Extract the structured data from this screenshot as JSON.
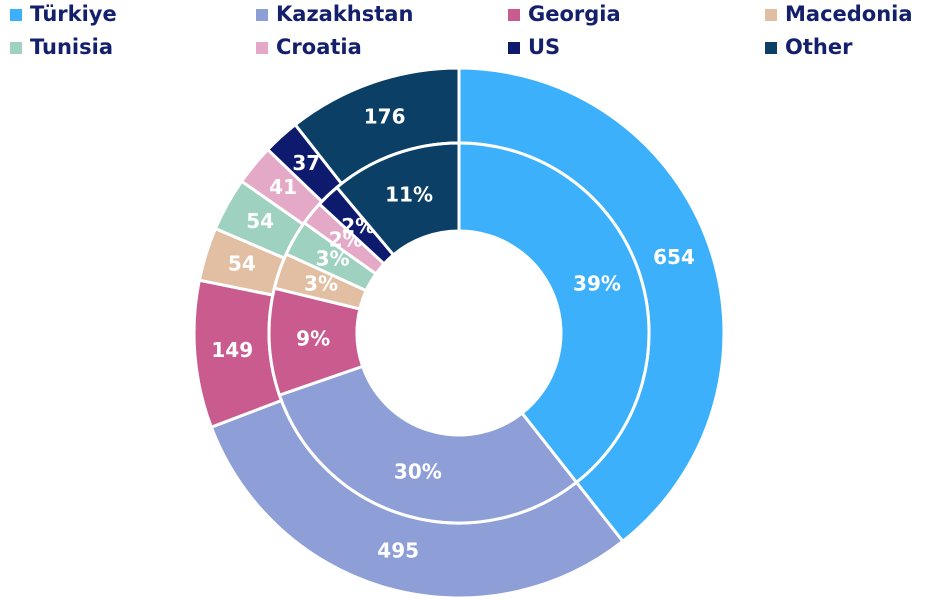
{
  "chart_data": {
    "type": "donut",
    "categories": [
      "Türkiye",
      "Kazakhstan",
      "Georgia",
      "Macedonia",
      "Tunisia",
      "Croatia",
      "US",
      "Other"
    ],
    "colors": [
      "#3cb0fb",
      "#8e9ed6",
      "#c95b8f",
      "#e2bfa3",
      "#9fd1c0",
      "#e5a9c8",
      "#0d1a6e",
      "#0b3f66"
    ],
    "values": [
      654,
      495,
      149,
      54,
      54,
      41,
      37,
      176
    ],
    "inner_values": [
      39,
      30,
      9,
      3,
      3,
      2,
      2,
      11
    ],
    "inner_value_labels": [
      "39%",
      "30%",
      "9%",
      "3%",
      "3%",
      "2%",
      "2%",
      "11%"
    ],
    "legend": "top"
  }
}
